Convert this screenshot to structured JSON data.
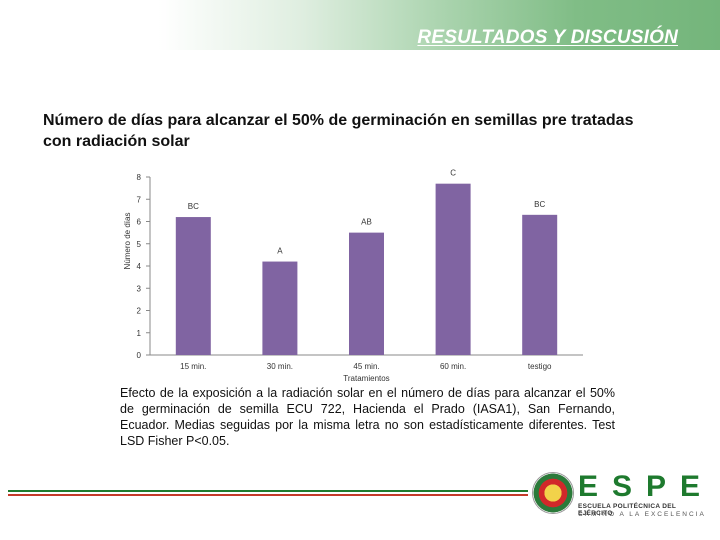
{
  "header": {
    "section_title": "RESULTADOS Y DISCUSIÓN"
  },
  "slide": {
    "title": "Número de días para alcanzar el 50% de germinación en semillas pre tratadas con radiación solar"
  },
  "chart_data": {
    "type": "bar",
    "categories": [
      "15 min.",
      "30 min.",
      "45 min.",
      "60 min.",
      "testigo"
    ],
    "values": [
      6.2,
      4.2,
      5.5,
      7.7,
      6.3
    ],
    "value_labels": [
      "BC",
      "A",
      "AB",
      "C",
      "BC"
    ],
    "xlabel": "Tratamientos",
    "ylabel": "Número de días",
    "ylim": [
      0,
      8
    ],
    "yticks": [
      0,
      1,
      2,
      3,
      4,
      5,
      6,
      7,
      8
    ],
    "bar_color": "#8064a2",
    "grid": false,
    "title": ""
  },
  "caption": {
    "text": "Efecto de la exposición a la radiación solar en el número de días para alcanzar el 50% de germinación de semilla ECU 722, Hacienda el Prado (IASA1), San Fernando, Ecuador. Medias seguidas por la misma letra no son estadísticamente diferentes. Test LSD Fisher P<0.05."
  },
  "logo": {
    "wordmark": "ESPE",
    "subtitle": "ESCUELA POLITÉCNICA DEL EJÉRCITO",
    "tagline": "CAMINO A LA EXCELENCIA"
  },
  "colors": {
    "accent_green": "#1e7a2e",
    "accent_red": "#c43a2a",
    "header_green": "#74b57b"
  }
}
